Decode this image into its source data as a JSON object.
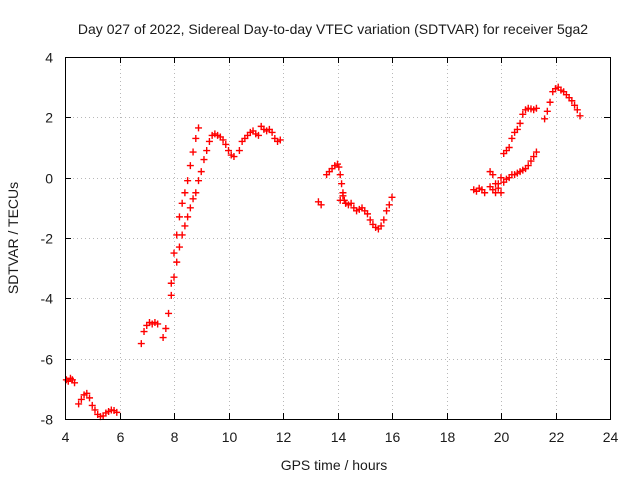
{
  "chart_data": {
    "type": "scatter",
    "title": "Day 027 of 2022, Sidereal Day-to-day VTEC variation (SDTVAR) for receiver 5ga2",
    "xlabel": "GPS time / hours",
    "ylabel": "SDTVAR / TECUs",
    "xlim": [
      4,
      24
    ],
    "ylim": [
      -8,
      4
    ],
    "xticks": [
      4,
      6,
      8,
      10,
      12,
      14,
      16,
      18,
      20,
      22,
      24
    ],
    "yticks": [
      -8,
      -6,
      -4,
      -2,
      0,
      2,
      4
    ],
    "xtick_labels": [
      "4",
      "6",
      "8",
      "10",
      "12",
      "14",
      "16",
      "18",
      "20",
      "22",
      "24"
    ],
    "ytick_labels": [
      "-8",
      "-6",
      "-4",
      "-2",
      "0",
      "2",
      "4"
    ],
    "grid": true,
    "marker": "+",
    "color": "#ff0000",
    "series": [
      {
        "name": "SDTVAR",
        "x": [
          4.05,
          4.12,
          4.2,
          4.27,
          4.35,
          4.5,
          4.6,
          4.7,
          4.8,
          4.9,
          5.0,
          5.1,
          5.2,
          5.3,
          5.4,
          5.5,
          5.6,
          5.7,
          5.8,
          5.9,
          6.8,
          6.9,
          7.0,
          7.1,
          7.2,
          7.3,
          7.4,
          7.6,
          7.7,
          7.8,
          7.9,
          8.0,
          8.1,
          8.2,
          8.3,
          8.4,
          8.5,
          8.6,
          8.7,
          8.8,
          8.9,
          9.0,
          9.1,
          9.2,
          9.3,
          9.4,
          9.5,
          9.6,
          9.7,
          9.8,
          9.9,
          10.0,
          10.1,
          10.2,
          7.9,
          8.0,
          8.1,
          8.2,
          8.3,
          8.4,
          8.5,
          8.6,
          8.7,
          8.8,
          8.9,
          10.4,
          10.5,
          10.6,
          10.7,
          10.8,
          10.9,
          11.0,
          11.1,
          11.2,
          11.3,
          11.4,
          11.5,
          11.6,
          11.7,
          11.8,
          11.9,
          13.3,
          13.4,
          13.6,
          13.7,
          13.8,
          13.9,
          14.0,
          14.05,
          14.1,
          14.15,
          14.2,
          14.25,
          14.3,
          14.4,
          14.5,
          14.6,
          14.7,
          14.8,
          14.9,
          15.0,
          15.1,
          15.2,
          15.3,
          15.4,
          15.5,
          15.6,
          15.7,
          15.8,
          15.9,
          16.0,
          14.1,
          14.2,
          14.3,
          19.0,
          19.1,
          19.2,
          19.3,
          19.4,
          19.6,
          19.7,
          19.8,
          19.9,
          20.0,
          20.1,
          20.2,
          20.3,
          20.4,
          20.5,
          20.6,
          20.7,
          20.8,
          20.9,
          21.0,
          21.1,
          21.2,
          21.3,
          19.6,
          19.7,
          19.8,
          19.9,
          20.0,
          20.1,
          20.2,
          20.3,
          20.4,
          20.5,
          20.6,
          20.7,
          20.8,
          20.9,
          21.0,
          21.1,
          21.2,
          21.3,
          21.6,
          21.7,
          21.8,
          21.9,
          22.0,
          22.1,
          22.2,
          22.3,
          22.4,
          22.5,
          22.6,
          22.7,
          22.8,
          22.9
        ],
        "y": [
          -6.7,
          -6.75,
          -6.65,
          -6.7,
          -6.8,
          -7.5,
          -7.35,
          -7.2,
          -7.15,
          -7.3,
          -7.55,
          -7.7,
          -7.85,
          -7.92,
          -7.9,
          -7.8,
          -7.75,
          -7.7,
          -7.72,
          -7.78,
          -5.5,
          -5.1,
          -4.9,
          -4.8,
          -4.85,
          -4.8,
          -4.85,
          -5.3,
          -5.0,
          -4.5,
          -3.9,
          -3.3,
          -2.8,
          -2.3,
          -1.9,
          -1.6,
          -1.3,
          -1.0,
          -0.7,
          -0.5,
          -0.1,
          0.2,
          0.6,
          0.9,
          1.2,
          1.4,
          1.45,
          1.4,
          1.35,
          1.25,
          1.1,
          0.9,
          0.75,
          0.7,
          -3.5,
          -2.5,
          -1.9,
          -1.3,
          -0.85,
          -0.5,
          -0.1,
          0.4,
          0.85,
          1.3,
          1.65,
          0.9,
          1.2,
          1.3,
          1.4,
          1.5,
          1.55,
          1.45,
          1.4,
          1.7,
          1.6,
          1.55,
          1.6,
          1.5,
          1.3,
          1.2,
          1.25,
          -0.8,
          -0.9,
          0.1,
          0.2,
          0.3,
          0.4,
          0.45,
          0.35,
          0.1,
          -0.2,
          -0.5,
          -0.75,
          -0.85,
          -0.9,
          -0.85,
          -1.0,
          -1.1,
          -1.05,
          -1.0,
          -1.1,
          -1.2,
          -1.4,
          -1.55,
          -1.65,
          -1.7,
          -1.6,
          -1.4,
          -1.1,
          -0.9,
          -0.65,
          -0.75,
          -0.6,
          -0.85,
          -0.4,
          -0.45,
          -0.35,
          -0.4,
          -0.5,
          0.2,
          0.1,
          -0.2,
          -0.35,
          -0.5,
          0.8,
          0.9,
          1.0,
          1.3,
          1.5,
          1.6,
          1.8,
          2.1,
          2.25,
          2.3,
          2.28,
          2.25,
          2.3,
          -0.3,
          -0.4,
          -0.5,
          -0.2,
          0.0,
          -0.15,
          -0.05,
          0.0,
          0.1,
          0.1,
          0.15,
          0.2,
          0.25,
          0.3,
          0.4,
          0.55,
          0.7,
          0.85,
          1.95,
          2.2,
          2.5,
          2.85,
          2.95,
          3.0,
          2.9,
          2.85,
          2.75,
          2.65,
          2.55,
          2.4,
          2.25,
          2.05
        ]
      }
    ]
  }
}
